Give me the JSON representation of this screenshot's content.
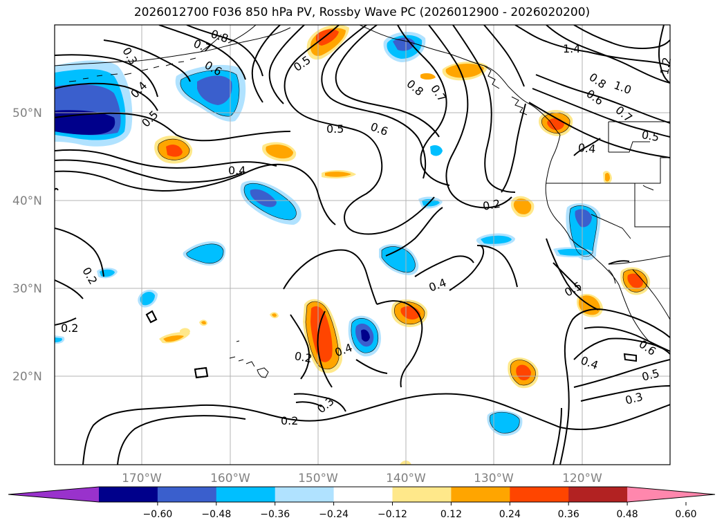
{
  "title": "2026012700 F036 850 hPa PV, Rossby Wave PC (2026012900 - 2026020200)",
  "lat_labels": [
    "50°N",
    "40°N",
    "30°N",
    "20°N"
  ],
  "lon_labels": [
    "170°W",
    "160°W",
    "150°W",
    "140°W",
    "130°W",
    "120°W"
  ],
  "colorbar": {
    "ticks": [
      "−0.60",
      "−0.48",
      "−0.36",
      "−0.24",
      "−0.12",
      "0.12",
      "0.24",
      "0.36",
      "0.48",
      "0.60"
    ],
    "colors": [
      "#9932cc",
      "#00008b",
      "#3a5fcd",
      "#00bfff",
      "#b0e2ff",
      "#ffffff",
      "#ffe88a",
      "#ffa500",
      "#ff4500",
      "#b22222",
      "#ff87ad"
    ]
  },
  "contour_labels": [
    {
      "text": "0.8"
    },
    {
      "text": "0.7"
    },
    {
      "text": "0.6"
    },
    {
      "text": "0.3"
    },
    {
      "text": "0.4"
    },
    {
      "text": "0.5"
    },
    {
      "text": "0.5"
    },
    {
      "text": "0.5"
    },
    {
      "text": "0.6"
    },
    {
      "text": "0.8"
    },
    {
      "text": "0.7"
    },
    {
      "text": "0.4"
    },
    {
      "text": "1.4"
    },
    {
      "text": "1.2"
    },
    {
      "text": "0.8"
    },
    {
      "text": "1.0"
    },
    {
      "text": "0.6"
    },
    {
      "text": "0.7"
    },
    {
      "text": "0.5"
    },
    {
      "text": "0.4"
    },
    {
      "text": "0.2"
    },
    {
      "text": "0.4"
    },
    {
      "text": "0.2"
    },
    {
      "text": "0.2"
    },
    {
      "text": "0.2"
    },
    {
      "text": "0.4"
    },
    {
      "text": "0.3"
    },
    {
      "text": "0.2"
    },
    {
      "text": "0.5"
    },
    {
      "text": "0.6"
    },
    {
      "text": "0.4"
    },
    {
      "text": "0.5"
    },
    {
      "text": "0.3"
    }
  ]
}
